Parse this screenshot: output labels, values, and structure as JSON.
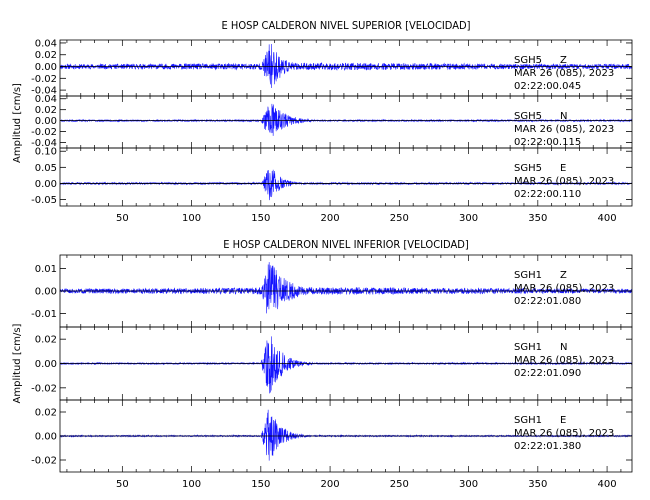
{
  "chart_data": [
    {
      "type": "line",
      "title": "E HOSP CALDERON NIVEL SUPERIOR [VELOCIDAD]",
      "ylabel": "Amplitud [cm/s]",
      "xlim": [
        5,
        418
      ],
      "x_ticks": [
        "50",
        "100",
        "150",
        "200",
        "250",
        "300",
        "350",
        "400"
      ],
      "x_tick_values": [
        50,
        100,
        150,
        200,
        250,
        300,
        350,
        400
      ],
      "panels": [
        {
          "station": "SGH5",
          "component": "Z",
          "date": "MAR 26 (085), 2023",
          "time": "02:22:00.045",
          "ylim": [
            -0.05,
            0.045
          ],
          "y_ticks": [
            0.04,
            0.02,
            0.0,
            -0.02,
            -0.04
          ],
          "y_tick_labels": [
            "0.04",
            "0.02",
            "0.00",
            "-0.02",
            "-0.04"
          ],
          "noise": 0.004,
          "peak": 0.045,
          "onset": 150,
          "peak_time": 157,
          "decay": 8,
          "growth": 0.5,
          "seed": 11
        },
        {
          "station": "SGH5",
          "component": "N",
          "date": "MAR 26 (085), 2023",
          "time": "02:22:00.115",
          "ylim": [
            -0.05,
            0.045
          ],
          "y_ticks": [
            0.04,
            0.02,
            0.0,
            -0.02,
            -0.04
          ],
          "y_tick_labels": [
            "0.04",
            "0.02",
            "0.00",
            "-0.02",
            "-0.04"
          ],
          "noise": 0.0015,
          "peak": 0.038,
          "onset": 150,
          "peak_time": 157,
          "decay": 10,
          "growth": 0.0,
          "seed": 23
        },
        {
          "station": "SGH5",
          "component": "E",
          "date": "MAR 26 (085), 2023",
          "time": "02:22:00.110",
          "ylim": [
            -0.07,
            0.11
          ],
          "y_ticks": [
            0.1,
            0.05,
            0.0,
            -0.05
          ],
          "y_tick_labels": [
            "0.10",
            "0.05",
            "0.00",
            "-0.05"
          ],
          "noise": 0.003,
          "peak": 0.06,
          "onset": 150,
          "peak_time": 157,
          "decay": 7,
          "growth": 0.0,
          "seed": 37
        }
      ]
    },
    {
      "type": "line",
      "title": "E HOSP CALDERON NIVEL INFERIOR [VELOCIDAD]",
      "ylabel": "Amplitud [cm/s]",
      "xlim": [
        5,
        418
      ],
      "x_ticks": [
        "50",
        "100",
        "150",
        "200",
        "250",
        "300",
        "350",
        "400"
      ],
      "x_tick_values": [
        50,
        100,
        150,
        200,
        250,
        300,
        350,
        400
      ],
      "panels": [
        {
          "station": "SGH1",
          "component": "Z",
          "date": "MAR 26 (085), 2023",
          "time": "02:22:01.080",
          "ylim": [
            -0.016,
            0.016
          ],
          "y_ticks": [
            0.01,
            0.0,
            -0.01
          ],
          "y_tick_labels": [
            "0.01",
            "0.00",
            "-0.01"
          ],
          "noise": 0.001,
          "peak": 0.015,
          "onset": 150,
          "peak_time": 156,
          "decay": 12,
          "growth": 0.6,
          "seed": 51
        },
        {
          "station": "SGH1",
          "component": "N",
          "date": "MAR 26 (085), 2023",
          "time": "02:22:01.090",
          "ylim": [
            -0.03,
            0.03
          ],
          "y_ticks": [
            0.02,
            0.0,
            -0.02
          ],
          "y_tick_labels": [
            "0.02",
            "0.00",
            "-0.02"
          ],
          "noise": 0.0006,
          "peak": 0.027,
          "onset": 150,
          "peak_time": 156,
          "decay": 9,
          "growth": 0.0,
          "seed": 67
        },
        {
          "station": "SGH1",
          "component": "E",
          "date": "MAR 26 (085), 2023",
          "time": "02:22:01.380",
          "ylim": [
            -0.03,
            0.03
          ],
          "y_ticks": [
            0.02,
            0.0,
            -0.02
          ],
          "y_tick_labels": [
            "0.02",
            "0.00",
            "-0.02"
          ],
          "noise": 0.0006,
          "peak": 0.025,
          "onset": 150,
          "peak_time": 156,
          "decay": 8,
          "growth": 0.0,
          "seed": 79
        }
      ]
    }
  ],
  "colors": {
    "trace": "#1414ff",
    "axis": "#000000"
  }
}
